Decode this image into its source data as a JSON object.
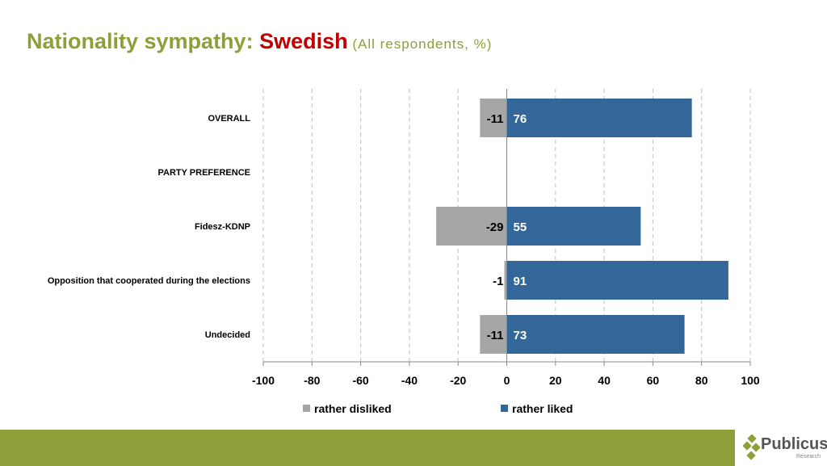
{
  "title": {
    "prefix": "Nationality sympathy: ",
    "highlight": "Swedish",
    "suffix": " (All respondents, %)"
  },
  "chart_data": {
    "type": "bar",
    "orientation": "horizontal-diverging",
    "categories": [
      "OVERALL",
      "PARTY PREFERENCE",
      "Fidesz-KDNP",
      "Opposition that cooperated during the elections",
      "Undecided"
    ],
    "series": [
      {
        "name": "rather disliked",
        "color": "#a6a6a6",
        "values": [
          -11,
          null,
          -29,
          -1,
          -11
        ]
      },
      {
        "name": "rather liked",
        "color": "#336699",
        "values": [
          76,
          null,
          55,
          91,
          73
        ]
      }
    ],
    "xlim": [
      -100,
      100
    ],
    "xticks": [
      -100,
      -80,
      -60,
      -40,
      -20,
      0,
      20,
      40,
      60,
      80,
      100
    ],
    "grid": "vertical dashed",
    "legend": "bottom"
  },
  "logo": {
    "name": "Publicus",
    "sub": "Research"
  }
}
